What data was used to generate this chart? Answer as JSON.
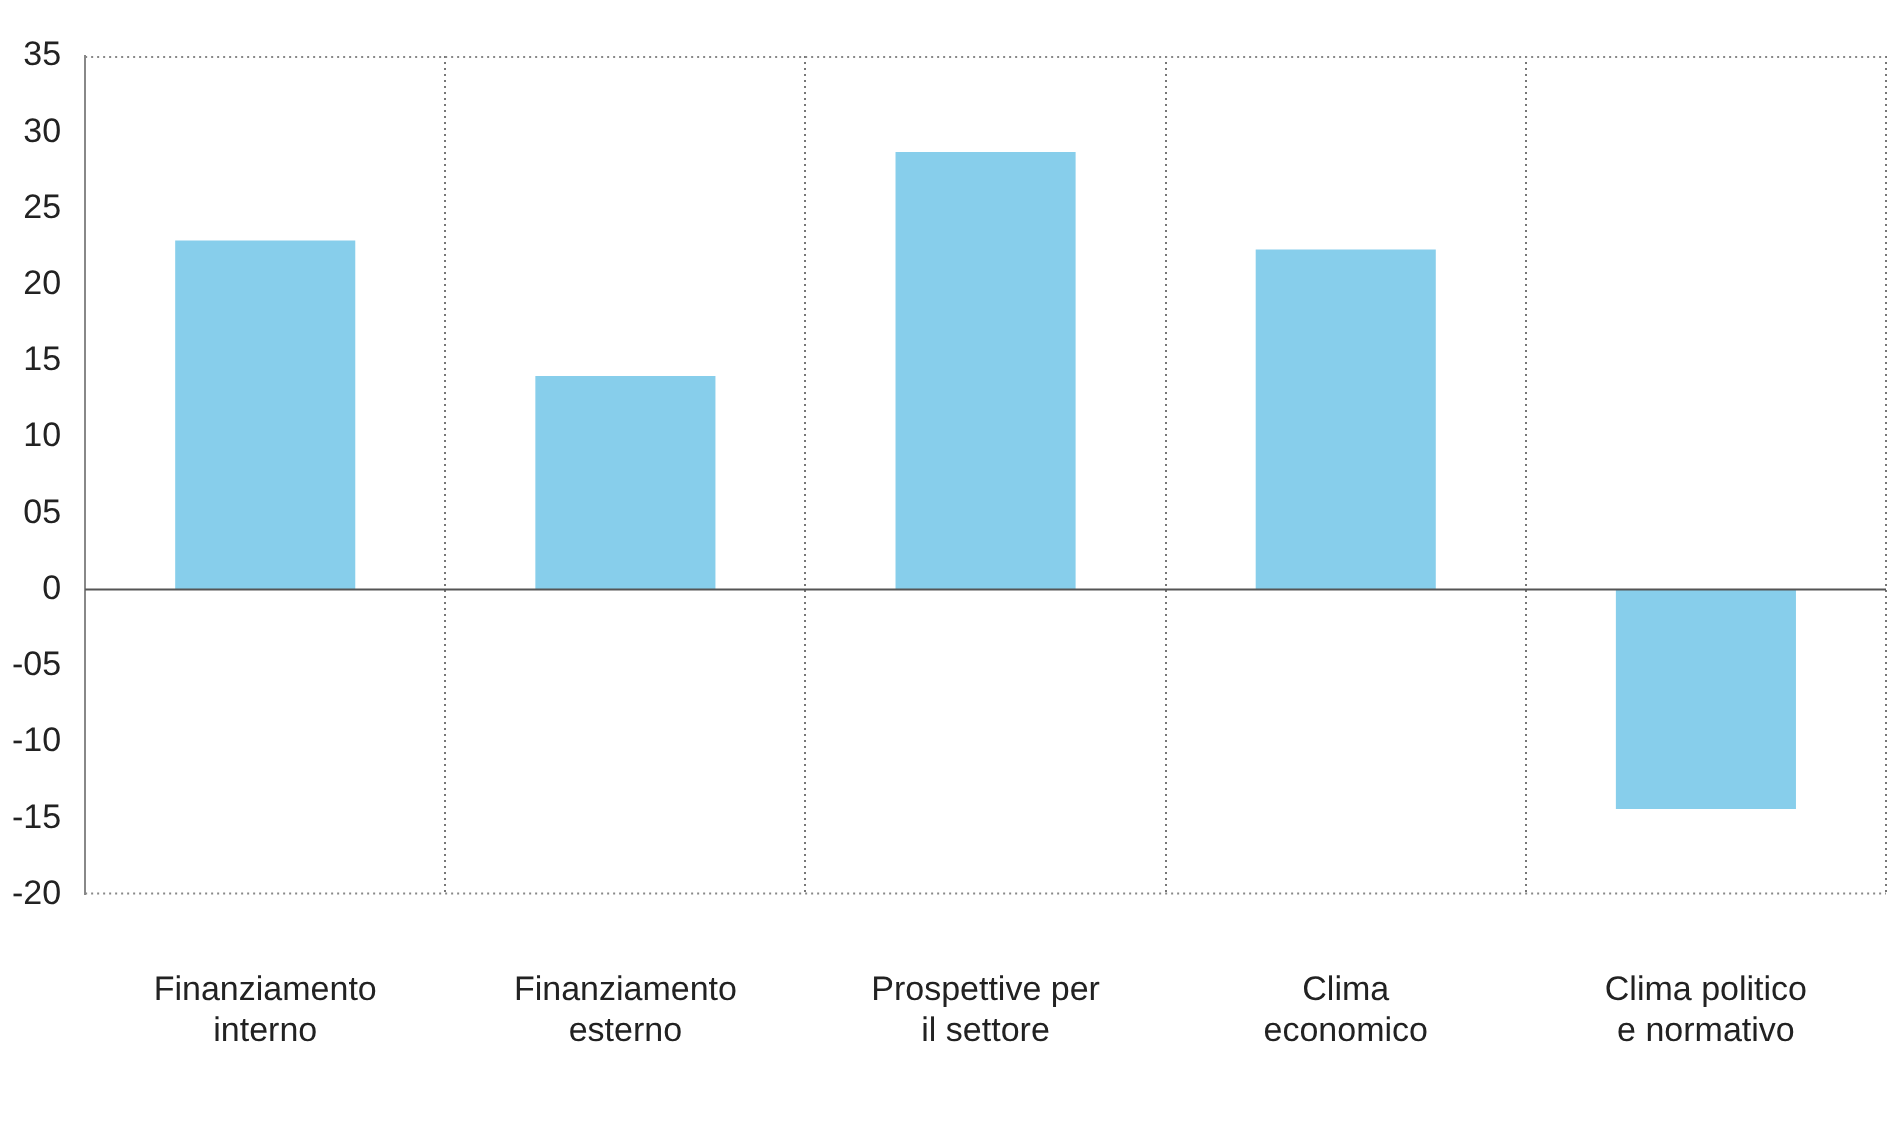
{
  "chart_data": {
    "type": "bar",
    "categories": [
      "Finanziamento interno",
      "Finanziamento esterno",
      "Prospettive per il settore",
      "Clima economico",
      "Clima politico e normativo"
    ],
    "values": [
      22.9,
      14.0,
      28.7,
      22.3,
      -14.4
    ],
    "color": "#87ceeb",
    "ylim": [
      -20,
      35
    ],
    "yticks": [
      -20,
      -15,
      -10,
      {
        "value": -5,
        "label": "-05"
      },
      0,
      {
        "value": 5,
        "label": "05"
      },
      10,
      15,
      20,
      25,
      30,
      35
    ],
    "grid": "x",
    "ref_lines": [
      {
        "axis": "y",
        "value": 0,
        "color": "#555555"
      }
    ]
  }
}
